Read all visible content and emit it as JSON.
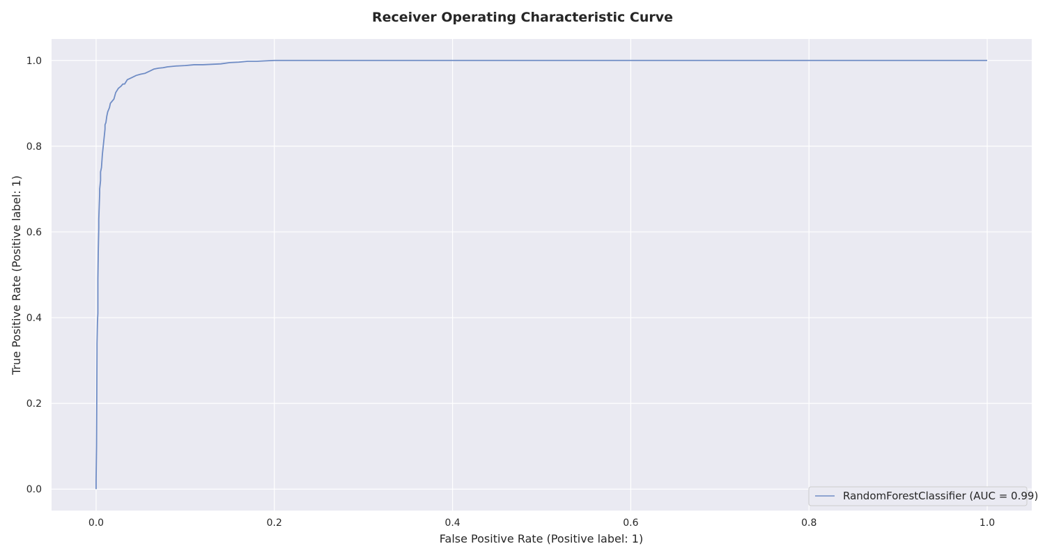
{
  "chart_data": {
    "type": "line",
    "title": "Receiver Operating Characteristic Curve",
    "xlabel": "False Positive Rate (Positive label: 1)",
    "ylabel": "True Positive Rate (Positive label: 1)",
    "xlim": [
      -0.05,
      1.05
    ],
    "ylim": [
      -0.05,
      1.05
    ],
    "xticks": [
      0.0,
      0.2,
      0.4,
      0.6,
      0.8,
      1.0
    ],
    "yticks": [
      0.0,
      0.2,
      0.4,
      0.6,
      0.8,
      1.0
    ],
    "xtick_labels": [
      "0.0",
      "0.2",
      "0.4",
      "0.6",
      "0.8",
      "1.0"
    ],
    "ytick_labels": [
      "0.0",
      "0.2",
      "0.4",
      "0.6",
      "0.8",
      "1.0"
    ],
    "grid": true,
    "legend_position": "lower-right",
    "colors": {
      "plot_background": "#eaeaf2",
      "grid": "#ffffff",
      "series": "#6f8cc5",
      "text": "#262626"
    },
    "series": [
      {
        "name": "RandomForestClassifier (AUC = 0.99)",
        "x": [
          0.0,
          0.0,
          0.0005,
          0.001,
          0.001,
          0.0015,
          0.002,
          0.002,
          0.0025,
          0.003,
          0.003,
          0.0035,
          0.004,
          0.004,
          0.005,
          0.005,
          0.006,
          0.007,
          0.008,
          0.009,
          0.01,
          0.01,
          0.011,
          0.012,
          0.013,
          0.014,
          0.015,
          0.016,
          0.018,
          0.02,
          0.022,
          0.025,
          0.028,
          0.03,
          0.032,
          0.035,
          0.04,
          0.045,
          0.05,
          0.055,
          0.06,
          0.065,
          0.07,
          0.075,
          0.08,
          0.09,
          0.1,
          0.11,
          0.12,
          0.14,
          0.15,
          0.16,
          0.17,
          0.18,
          0.19,
          0.2,
          0.205,
          1.0
        ],
        "y": [
          0.0,
          0.02,
          0.1,
          0.32,
          0.34,
          0.39,
          0.41,
          0.49,
          0.56,
          0.61,
          0.63,
          0.66,
          0.69,
          0.7,
          0.72,
          0.74,
          0.75,
          0.78,
          0.8,
          0.82,
          0.84,
          0.85,
          0.855,
          0.87,
          0.88,
          0.885,
          0.89,
          0.9,
          0.905,
          0.91,
          0.925,
          0.935,
          0.94,
          0.945,
          0.945,
          0.955,
          0.96,
          0.965,
          0.968,
          0.97,
          0.975,
          0.98,
          0.982,
          0.983,
          0.985,
          0.987,
          0.988,
          0.99,
          0.99,
          0.992,
          0.995,
          0.996,
          0.998,
          0.998,
          0.999,
          1.0,
          1.0,
          1.0
        ]
      }
    ]
  }
}
